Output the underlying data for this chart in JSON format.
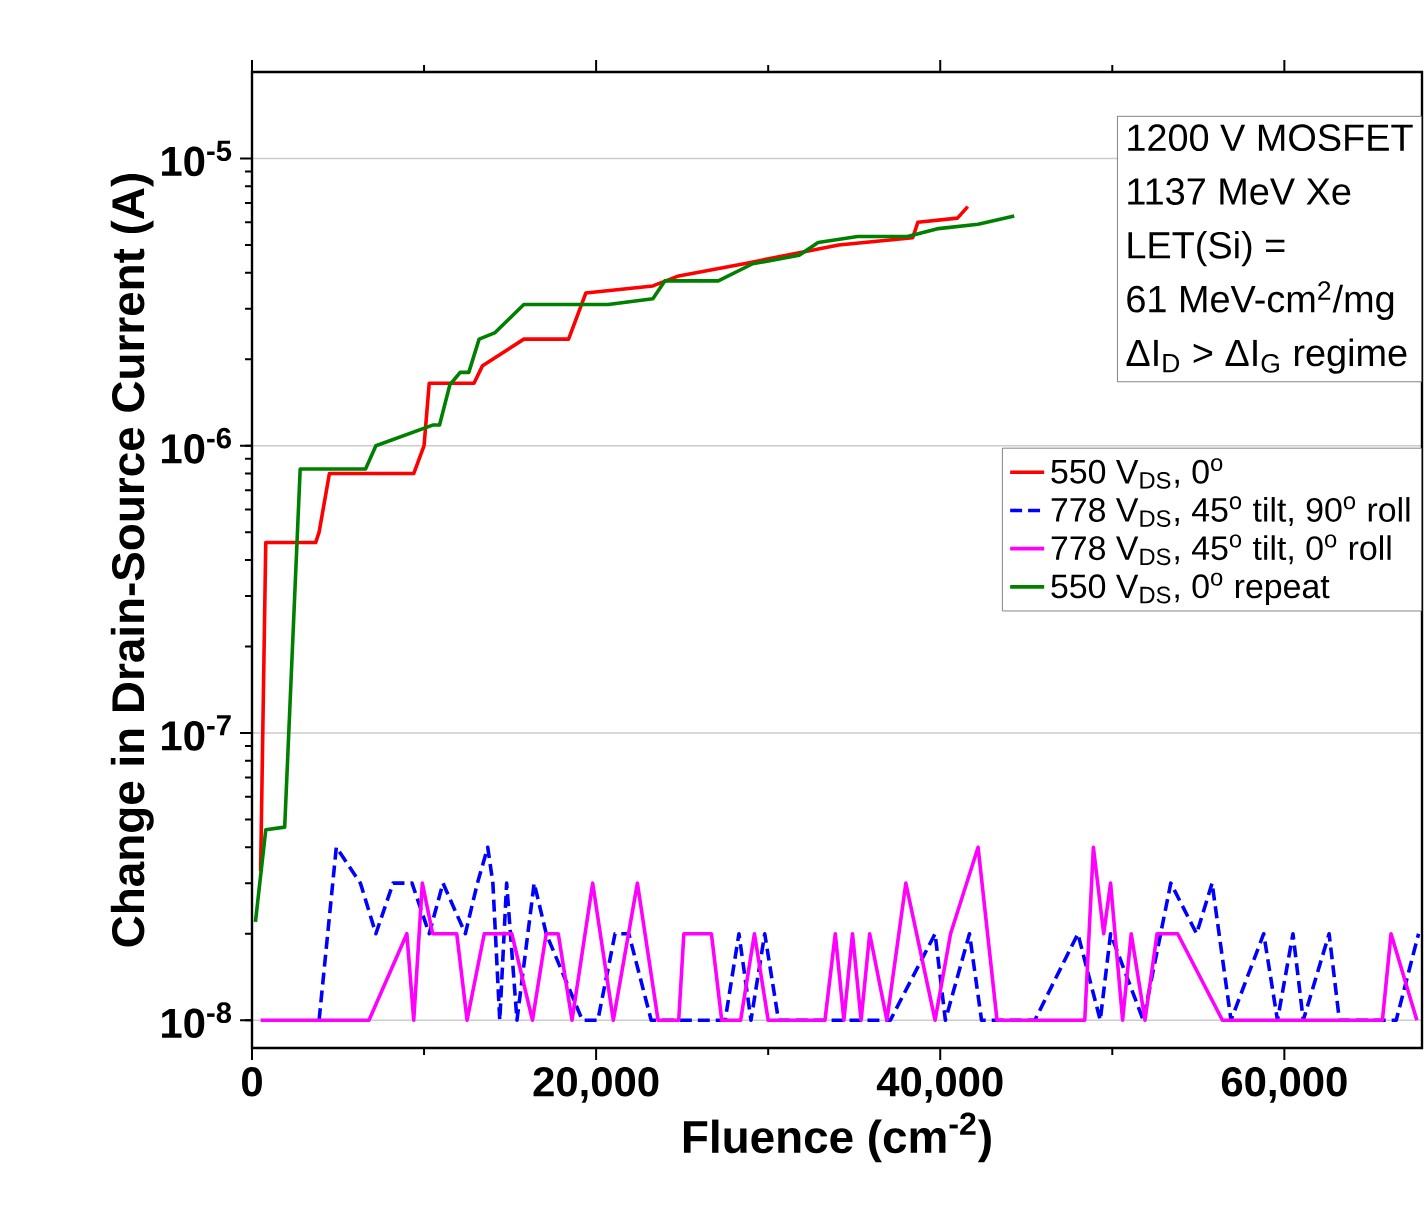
{
  "chart_data": {
    "type": "line",
    "xlabel": "Fluence (cm$^{-2}$)",
    "ylabel": "Change in Drain-Source Current (A)",
    "xlim": [
      0,
      68000
    ],
    "ylim": [
      8e-09,
      2e-05
    ],
    "xticks": [
      0,
      {
        "value": 20000,
        "label": "20,000"
      },
      {
        "value": 40000,
        "label": "40,000"
      },
      {
        "value": 60000,
        "label": "60,000"
      }
    ],
    "yticks": [
      {
        "value": 1e-08,
        "label": "10$^{-8}$"
      },
      {
        "value": 1e-07,
        "label": "10$^{-7}$"
      },
      {
        "value": 1e-06,
        "label": "10$^{-6}$"
      },
      {
        "value": 1e-05,
        "label": "10$^{-5}$"
      }
    ],
    "log": "y",
    "grid": "y",
    "legend": "right",
    "marker": "none",
    "annotations": [
      "1200 V MOSFET",
      "1137 MeV Xe",
      "LET(Si) =",
      "61 MeV-cm$^{2}$/mg",
      "ΔI$_{D}$ > ΔI$_{G}$ regime"
    ],
    "series": [
      {
        "name": "550 V$_{DS}$, 0$^{o}$",
        "color": "#ff0000",
        "line_style": "solid",
        "x": [
          500,
          800,
          3700,
          3900,
          4500,
          9400,
          10000,
          10300,
          12900,
          13400,
          15800,
          18400,
          19400,
          23300,
          24800,
          28600,
          31800,
          34100,
          38400,
          38700,
          41000,
          41600
        ],
        "values": [
          3.3e-08,
          4.6e-07,
          4.6e-07,
          5e-07,
          8e-07,
          8e-07,
          1e-06,
          1.65e-06,
          1.65e-06,
          1.9e-06,
          2.35e-06,
          2.35e-06,
          3.4e-06,
          3.6e-06,
          3.9e-06,
          4.3e-06,
          4.7e-06,
          5e-06,
          5.3e-06,
          6e-06,
          6.2e-06,
          6.8e-06
        ]
      },
      {
        "name": "778 V$_{DS}$, 45$^{o}$ tilt, 90$^{o}$ roll",
        "color": "#0000ff",
        "line_style": "dashed",
        "x": [
          3900,
          4900,
          6300,
          7200,
          8200,
          9300,
          10300,
          11100,
          12400,
          13100,
          13700,
          14000,
          14400,
          14800,
          15400,
          16400,
          17100,
          19200,
          20100,
          21100,
          21900,
          23200,
          25600,
          27500,
          28300,
          29000,
          29800,
          30600,
          37100,
          39700,
          40300,
          41700,
          42400,
          45500,
          48000,
          49300,
          49900,
          51800,
          53400,
          54900,
          55800,
          56900,
          58800,
          59600,
          60500,
          61100,
          62600,
          63200,
          66500,
          67800
        ],
        "values": [
          1e-08,
          4e-08,
          3e-08,
          2e-08,
          3e-08,
          3e-08,
          2e-08,
          3e-08,
          2e-08,
          3e-08,
          4e-08,
          3e-08,
          1e-08,
          3e-08,
          1e-08,
          3e-08,
          2e-08,
          1e-08,
          1e-08,
          2e-08,
          2e-08,
          1e-08,
          1e-08,
          1e-08,
          2e-08,
          1e-08,
          2e-08,
          1e-08,
          1e-08,
          2e-08,
          1e-08,
          2e-08,
          1e-08,
          1e-08,
          2e-08,
          1e-08,
          2e-08,
          1e-08,
          3e-08,
          2e-08,
          3e-08,
          1e-08,
          2e-08,
          1e-08,
          2e-08,
          1e-08,
          2e-08,
          1e-08,
          1e-08,
          2e-08
        ]
      },
      {
        "name": "778 V$_{DS}$, 45$^{o}$ tilt, 0$^{o}$ roll",
        "color": "#ff00ff",
        "line_style": "solid",
        "x": [
          500,
          6800,
          9000,
          9400,
          9900,
          10500,
          11900,
          12500,
          13500,
          15100,
          16300,
          17100,
          17800,
          18600,
          19800,
          21000,
          22400,
          23600,
          24800,
          25100,
          26700,
          27300,
          28400,
          29200,
          30000,
          33300,
          33900,
          34400,
          34900,
          35400,
          35900,
          36900,
          38000,
          39700,
          40600,
          42200,
          43300,
          48400,
          48900,
          49500,
          49900,
          50600,
          51100,
          51900,
          52600,
          53800,
          56400,
          65700,
          66200,
          67700
        ],
        "values": [
          1e-08,
          1e-08,
          2e-08,
          1e-08,
          3e-08,
          2e-08,
          2e-08,
          1e-08,
          2e-08,
          2e-08,
          1e-08,
          2e-08,
          2e-08,
          1e-08,
          3e-08,
          1e-08,
          3e-08,
          1e-08,
          1e-08,
          2e-08,
          2e-08,
          1e-08,
          1e-08,
          2e-08,
          1e-08,
          1e-08,
          2e-08,
          1e-08,
          2e-08,
          1e-08,
          2e-08,
          1e-08,
          3e-08,
          1e-08,
          2e-08,
          4e-08,
          1e-08,
          1e-08,
          4e-08,
          2e-08,
          3e-08,
          1e-08,
          2e-08,
          1e-08,
          2e-08,
          2e-08,
          1e-08,
          1e-08,
          2e-08,
          1e-08
        ]
      },
      {
        "name": "550 V$_{DS}$, 0$^{o}$ repeat",
        "color": "#008000",
        "line_style": "solid",
        "x": [
          200,
          800,
          1900,
          2800,
          6600,
          7200,
          10500,
          10900,
          11500,
          12100,
          12600,
          13200,
          14100,
          15800,
          20700,
          23300,
          24000,
          27100,
          29100,
          31800,
          32900,
          35200,
          38100,
          39900,
          42200,
          44300
        ],
        "values": [
          2.2e-08,
          4.6e-08,
          4.7e-08,
          8.3e-07,
          8.3e-07,
          1e-06,
          1.18e-06,
          1.18e-06,
          1.63e-06,
          1.8e-06,
          1.8e-06,
          2.35e-06,
          2.47e-06,
          3.1e-06,
          3.1e-06,
          3.25e-06,
          3.75e-06,
          3.75e-06,
          4.3e-06,
          4.6e-06,
          5.1e-06,
          5.35e-06,
          5.35e-06,
          5.7e-06,
          5.9e-06,
          6.3e-06
        ]
      }
    ]
  }
}
